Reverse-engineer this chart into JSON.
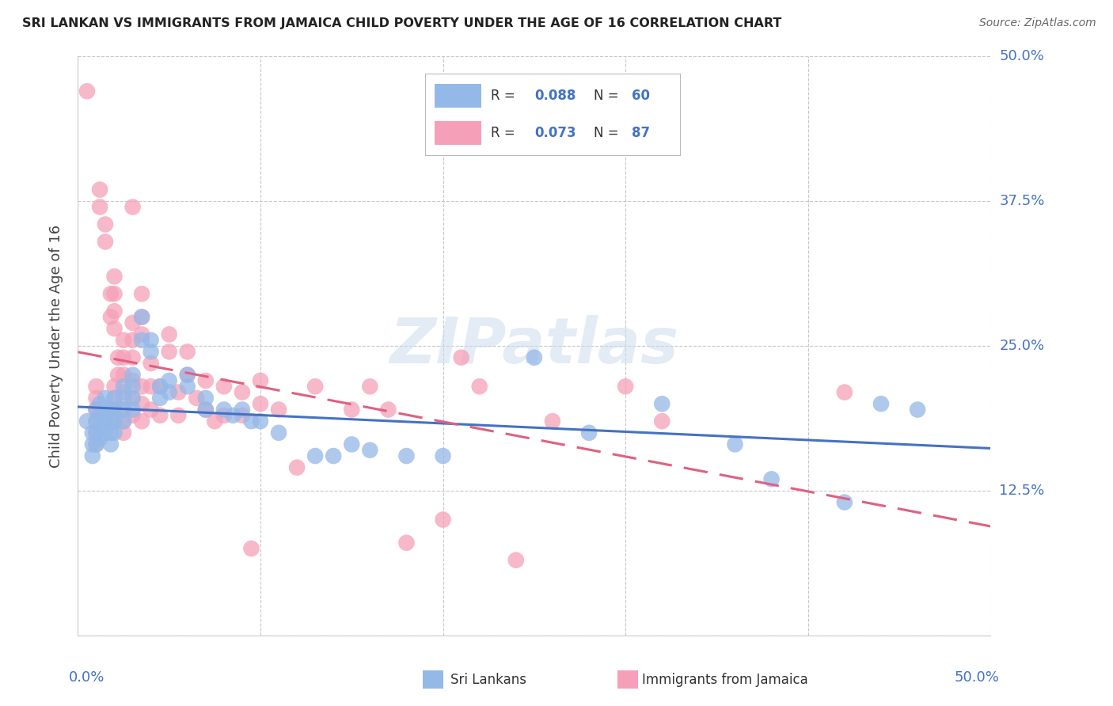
{
  "title": "SRI LANKAN VS IMMIGRANTS FROM JAMAICA CHILD POVERTY UNDER THE AGE OF 16 CORRELATION CHART",
  "source": "Source: ZipAtlas.com",
  "ylabel": "Child Poverty Under the Age of 16",
  "xlim": [
    0.0,
    0.5
  ],
  "ylim": [
    0.0,
    0.5
  ],
  "yticks": [
    0.0,
    0.125,
    0.25,
    0.375,
    0.5
  ],
  "ytick_labels": [
    "",
    "12.5%",
    "25.0%",
    "37.5%",
    "50.0%"
  ],
  "xticks": [
    0.0,
    0.1,
    0.2,
    0.3,
    0.4,
    0.5
  ],
  "color_sri": "#94b8e8",
  "color_jam": "#f5a0b8",
  "color_sri_line": "#4472c4",
  "color_jam_line": "#e06080",
  "watermark_text": "ZIPatlas",
  "sri_lankans": [
    [
      0.005,
      0.185
    ],
    [
      0.008,
      0.175
    ],
    [
      0.008,
      0.165
    ],
    [
      0.008,
      0.155
    ],
    [
      0.01,
      0.195
    ],
    [
      0.01,
      0.185
    ],
    [
      0.01,
      0.175
    ],
    [
      0.01,
      0.165
    ],
    [
      0.012,
      0.2
    ],
    [
      0.012,
      0.19
    ],
    [
      0.012,
      0.18
    ],
    [
      0.012,
      0.17
    ],
    [
      0.015,
      0.205
    ],
    [
      0.015,
      0.195
    ],
    [
      0.015,
      0.185
    ],
    [
      0.015,
      0.175
    ],
    [
      0.018,
      0.195
    ],
    [
      0.018,
      0.185
    ],
    [
      0.018,
      0.175
    ],
    [
      0.018,
      0.165
    ],
    [
      0.02,
      0.205
    ],
    [
      0.02,
      0.195
    ],
    [
      0.02,
      0.185
    ],
    [
      0.02,
      0.175
    ],
    [
      0.025,
      0.215
    ],
    [
      0.025,
      0.205
    ],
    [
      0.025,
      0.195
    ],
    [
      0.025,
      0.185
    ],
    [
      0.03,
      0.225
    ],
    [
      0.03,
      0.215
    ],
    [
      0.03,
      0.205
    ],
    [
      0.03,
      0.195
    ],
    [
      0.035,
      0.275
    ],
    [
      0.035,
      0.255
    ],
    [
      0.04,
      0.255
    ],
    [
      0.04,
      0.245
    ],
    [
      0.045,
      0.215
    ],
    [
      0.045,
      0.205
    ],
    [
      0.05,
      0.22
    ],
    [
      0.05,
      0.21
    ],
    [
      0.06,
      0.225
    ],
    [
      0.06,
      0.215
    ],
    [
      0.07,
      0.205
    ],
    [
      0.07,
      0.195
    ],
    [
      0.08,
      0.195
    ],
    [
      0.085,
      0.19
    ],
    [
      0.09,
      0.195
    ],
    [
      0.095,
      0.185
    ],
    [
      0.1,
      0.185
    ],
    [
      0.11,
      0.175
    ],
    [
      0.13,
      0.155
    ],
    [
      0.14,
      0.155
    ],
    [
      0.15,
      0.165
    ],
    [
      0.16,
      0.16
    ],
    [
      0.18,
      0.155
    ],
    [
      0.2,
      0.155
    ],
    [
      0.25,
      0.24
    ],
    [
      0.28,
      0.175
    ],
    [
      0.32,
      0.2
    ],
    [
      0.36,
      0.165
    ],
    [
      0.38,
      0.135
    ],
    [
      0.42,
      0.115
    ],
    [
      0.44,
      0.2
    ],
    [
      0.46,
      0.195
    ]
  ],
  "immigrants_jamaica": [
    [
      0.005,
      0.47
    ],
    [
      0.01,
      0.215
    ],
    [
      0.01,
      0.205
    ],
    [
      0.01,
      0.195
    ],
    [
      0.01,
      0.185
    ],
    [
      0.01,
      0.175
    ],
    [
      0.01,
      0.165
    ],
    [
      0.012,
      0.385
    ],
    [
      0.012,
      0.37
    ],
    [
      0.015,
      0.355
    ],
    [
      0.015,
      0.34
    ],
    [
      0.018,
      0.295
    ],
    [
      0.018,
      0.275
    ],
    [
      0.02,
      0.31
    ],
    [
      0.02,
      0.295
    ],
    [
      0.02,
      0.28
    ],
    [
      0.02,
      0.265
    ],
    [
      0.02,
      0.215
    ],
    [
      0.02,
      0.205
    ],
    [
      0.02,
      0.195
    ],
    [
      0.02,
      0.185
    ],
    [
      0.022,
      0.24
    ],
    [
      0.022,
      0.225
    ],
    [
      0.025,
      0.255
    ],
    [
      0.025,
      0.24
    ],
    [
      0.025,
      0.225
    ],
    [
      0.025,
      0.21
    ],
    [
      0.025,
      0.195
    ],
    [
      0.025,
      0.185
    ],
    [
      0.025,
      0.175
    ],
    [
      0.03,
      0.37
    ],
    [
      0.03,
      0.27
    ],
    [
      0.03,
      0.255
    ],
    [
      0.03,
      0.24
    ],
    [
      0.03,
      0.22
    ],
    [
      0.03,
      0.205
    ],
    [
      0.03,
      0.19
    ],
    [
      0.035,
      0.295
    ],
    [
      0.035,
      0.275
    ],
    [
      0.035,
      0.26
    ],
    [
      0.035,
      0.215
    ],
    [
      0.035,
      0.2
    ],
    [
      0.035,
      0.185
    ],
    [
      0.04,
      0.235
    ],
    [
      0.04,
      0.215
    ],
    [
      0.04,
      0.195
    ],
    [
      0.045,
      0.215
    ],
    [
      0.045,
      0.19
    ],
    [
      0.05,
      0.26
    ],
    [
      0.05,
      0.245
    ],
    [
      0.055,
      0.21
    ],
    [
      0.055,
      0.19
    ],
    [
      0.06,
      0.245
    ],
    [
      0.06,
      0.225
    ],
    [
      0.065,
      0.205
    ],
    [
      0.07,
      0.22
    ],
    [
      0.07,
      0.195
    ],
    [
      0.075,
      0.185
    ],
    [
      0.08,
      0.215
    ],
    [
      0.08,
      0.19
    ],
    [
      0.09,
      0.21
    ],
    [
      0.09,
      0.19
    ],
    [
      0.095,
      0.075
    ],
    [
      0.1,
      0.22
    ],
    [
      0.1,
      0.2
    ],
    [
      0.11,
      0.195
    ],
    [
      0.12,
      0.145
    ],
    [
      0.13,
      0.215
    ],
    [
      0.15,
      0.195
    ],
    [
      0.16,
      0.215
    ],
    [
      0.17,
      0.195
    ],
    [
      0.18,
      0.08
    ],
    [
      0.2,
      0.1
    ],
    [
      0.21,
      0.24
    ],
    [
      0.22,
      0.215
    ],
    [
      0.24,
      0.065
    ],
    [
      0.26,
      0.185
    ],
    [
      0.3,
      0.215
    ],
    [
      0.32,
      0.185
    ],
    [
      0.42,
      0.21
    ]
  ]
}
